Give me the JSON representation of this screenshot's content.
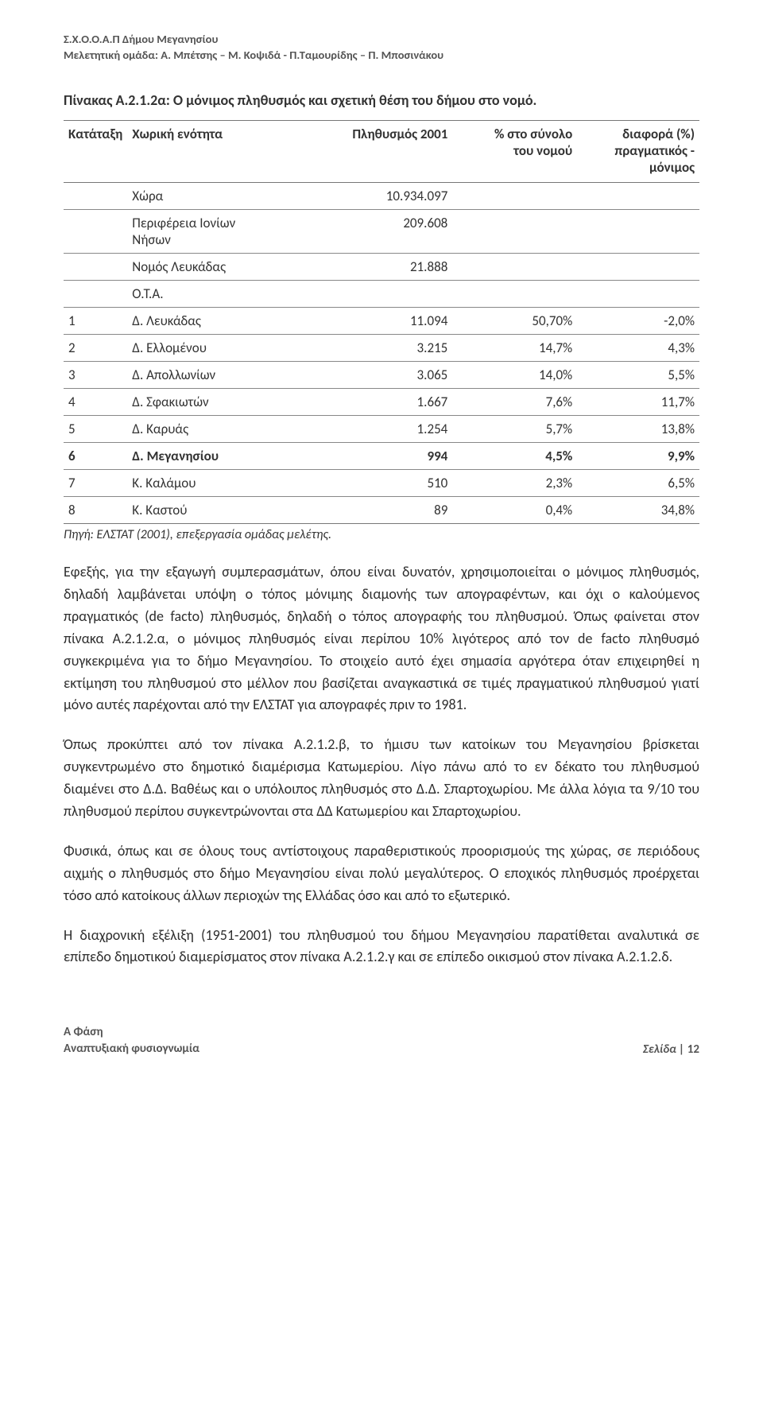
{
  "header": {
    "line1": "Σ.Χ.Ο.Ο.Α.Π Δήμου  Μεγανησίου",
    "line2": "Μελετητική ομάδα: Α. Μπέτσης – Μ. Κοψιδά  - Π.Ταμουρίδης – Π. Μποσινάκου"
  },
  "table": {
    "title": "Πίνακας Α.2.1.2α: Ο μόνιμος πληθυσμός και σχετική θέση του δήμου στο νομό.",
    "columns": {
      "rank": "Κατάταξη",
      "entity": "Χωρική ενότητα",
      "pop": "Πληθυσμός 2001",
      "pct_l1": "% στο σύνολο",
      "pct_l2": "του νομού",
      "diff_l1": "διαφορά (%)",
      "diff_l2": "πραγματικός -",
      "diff_l3": "μόνιμος"
    },
    "pre_rows": [
      {
        "entity": "Χώρα",
        "pop": "10.934.097"
      },
      {
        "entity_l1": "Περιφέρεια Ιονίων",
        "entity_l2": "Νήσων",
        "pop": "209.608"
      },
      {
        "entity": "Νομός Λευκάδας",
        "pop": "21.888"
      },
      {
        "entity": "Ο.Τ.Α."
      }
    ],
    "rows": [
      {
        "rank": "1",
        "entity": "Δ. Λευκάδας",
        "pop": "11.094",
        "pct": "50,70%",
        "diff": "-2,0%",
        "bold": false
      },
      {
        "rank": "2",
        "entity": "Δ. Ελλομένου",
        "pop": "3.215",
        "pct": "14,7%",
        "diff": "4,3%",
        "bold": false
      },
      {
        "rank": "3",
        "entity": "Δ. Απολλωνίων",
        "pop": "3.065",
        "pct": "14,0%",
        "diff": "5,5%",
        "bold": false
      },
      {
        "rank": "4",
        "entity": "Δ. Σφακιωτών",
        "pop": "1.667",
        "pct": "7,6%",
        "diff": "11,7%",
        "bold": false
      },
      {
        "rank": "5",
        "entity": "Δ. Καρυάς",
        "pop": "1.254",
        "pct": "5,7%",
        "diff": "13,8%",
        "bold": false
      },
      {
        "rank": "6",
        "entity": "Δ. Μεγανησίου",
        "pop": "994",
        "pct": "4,5%",
        "diff": "9,9%",
        "bold": true
      },
      {
        "rank": "7",
        "entity": "Κ. Καλάμου",
        "pop": "510",
        "pct": "2,3%",
        "diff": "6,5%",
        "bold": false
      },
      {
        "rank": "8",
        "entity": "Κ. Καστού",
        "pop": "89",
        "pct": "0,4%",
        "diff": "34,8%",
        "bold": false
      }
    ],
    "source": "Πηγή: ΕΛΣΤΑΤ (2001), επεξεργασία ομάδας μελέτης."
  },
  "paragraphs": [
    "Εφεξής, για την εξαγωγή συμπερασμάτων, όπου είναι δυνατόν, χρησιμοποιείται ο μόνιμος πληθυσμός, δηλαδή λαμβάνεται υπόψη ο τόπος μόνιμης διαμονής των απογραφέντων, και όχι ο καλούμενος πραγματικός (de facto) πληθυσμός, δηλαδή ο τόπος απογραφής του πληθυσμού. Όπως φαίνεται στον πίνακα Α.2.1.2.α, ο μόνιμος πληθυσμός είναι περίπου 10% λιγότερος από τον de facto πληθυσμό συγκεκριμένα για το δήμο Μεγανησίου. Το στοιχείο αυτό έχει σημασία αργότερα όταν επιχειρηθεί η εκτίμηση του πληθυσμού στο μέλλον που βασίζεται αναγκαστικά σε τιμές πραγματικού πληθυσμού γιατί μόνο αυτές παρέχονται από την ΕΛΣΤΑΤ για απογραφές πριν το 1981.",
    "Όπως προκύπτει από τον πίνακα Α.2.1.2.β, το ήμισυ των κατοίκων του Μεγανησίου βρίσκεται συγκεντρωμένο στο δημοτικό διαμέρισμα Κατωμερίου. Λίγο πάνω από το εν δέκατο του πληθυσμού διαμένει στο Δ.Δ. Βαθέως και ο υπόλοιπος πληθυσμός στο Δ.Δ. Σπαρτοχωρίου. Με άλλα λόγια τα 9/10 του πληθυσμού περίπου συγκεντρώνονται στα ΔΔ Κατωμερίου και Σπαρτοχωρίου.",
    "Φυσικά, όπως και σε όλους τους αντίστοιχους παραθεριστικούς προορισμούς της χώρας, σε περιόδους αιχμής ο πληθυσμός στο δήμο Μεγανησίου είναι πολύ μεγαλύτερος. Ο εποχικός πληθυσμός προέρχεται τόσο από κατοίκους άλλων περιοχών της Ελλάδας όσο και από το εξωτερικό.",
    "Η διαχρονική εξέλιξη (1951-2001) του πληθυσμού του δήμου Μεγανησίου παρατίθεται αναλυτικά σε επίπεδο δημοτικού διαμερίσματος στον πίνακα Α.2.1.2.γ και σε επίπεδο οικισμού στον πίνακα Α.2.1.2.δ."
  ],
  "footer": {
    "left_l1": "Α Φάση",
    "left_l2": "Αναπτυξιακή φυσιογνωμία",
    "right_label": "Σελίδα | ",
    "right_page": "12"
  },
  "style": {
    "text_color": "#2e2e2e",
    "muted_color": "#555555",
    "border_color": "#777777",
    "background": "#ffffff",
    "body_fontsize_pt": 13,
    "title_fontsize_pt": 13
  }
}
